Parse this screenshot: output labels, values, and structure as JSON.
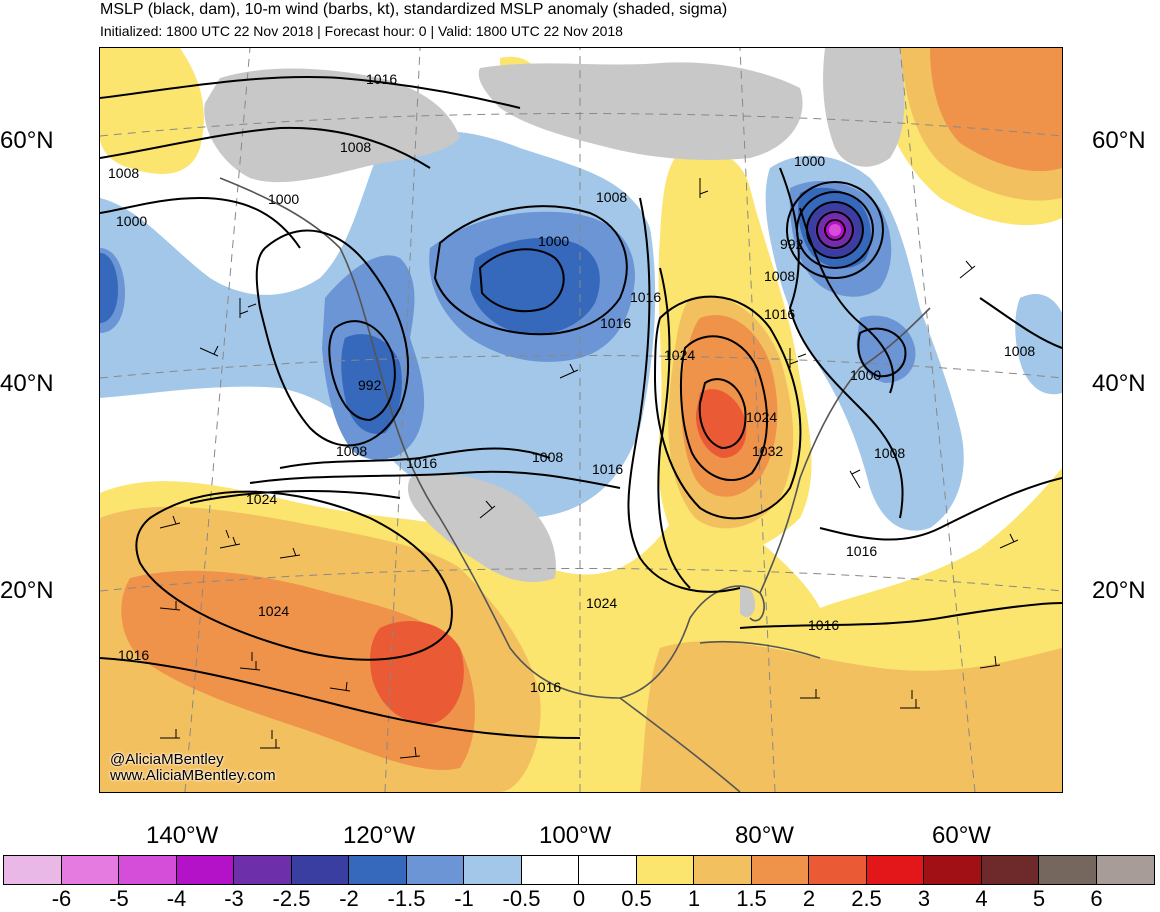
{
  "header": {
    "title": "MSLP (black, dam), 10-m wind (barbs, kt), standardized MSLP anomaly (shaded, sigma)",
    "subtitle": "Initialized: 1800 UTC 22 Nov 2018 | Forecast hour: 0 | Valid: 1800 UTC 22 Nov 2018"
  },
  "lat_labels": [
    "60°N",
    "40°N",
    "20°N"
  ],
  "lon_labels": [
    "140°W",
    "120°W",
    "100°W",
    "80°W",
    "60°W"
  ],
  "credit": {
    "handle": "@AliciaMBentley",
    "site": "www.AliciaMBentley.com"
  },
  "isobar_labels": [
    "1016",
    "1008",
    "1008",
    "1000",
    "1000",
    "1008",
    "1000",
    "992",
    "1008",
    "1016",
    "1008",
    "1016",
    "1024",
    "1024",
    "1016",
    "1016",
    "1000",
    "992",
    "1008",
    "1016",
    "1024",
    "1024",
    "1032",
    "1000",
    "1008",
    "1008",
    "1016",
    "1016",
    "1016",
    "1024",
    "1016"
  ],
  "colorbar": {
    "colors": [
      "#e9b8e6",
      "#e57be1",
      "#d44ed9",
      "#b312c9",
      "#6e2faa",
      "#3a3ea0",
      "#3668bb",
      "#6b95d4",
      "#a3c7e8",
      "#ffffff",
      "#ffffff",
      "#fbe56e",
      "#f3c060",
      "#f0934a",
      "#ea5a35",
      "#e3161a",
      "#a11015",
      "#6e2a2a",
      "#75675e",
      "#a89c98"
    ],
    "labels": [
      "-6",
      "-5",
      "-4",
      "-3",
      "-2.5",
      "-2",
      "-1.5",
      "-1",
      "-0.5",
      "0",
      "0.5",
      "1",
      "1.5",
      "2",
      "2.5",
      "3",
      "4",
      "5",
      "6"
    ]
  }
}
